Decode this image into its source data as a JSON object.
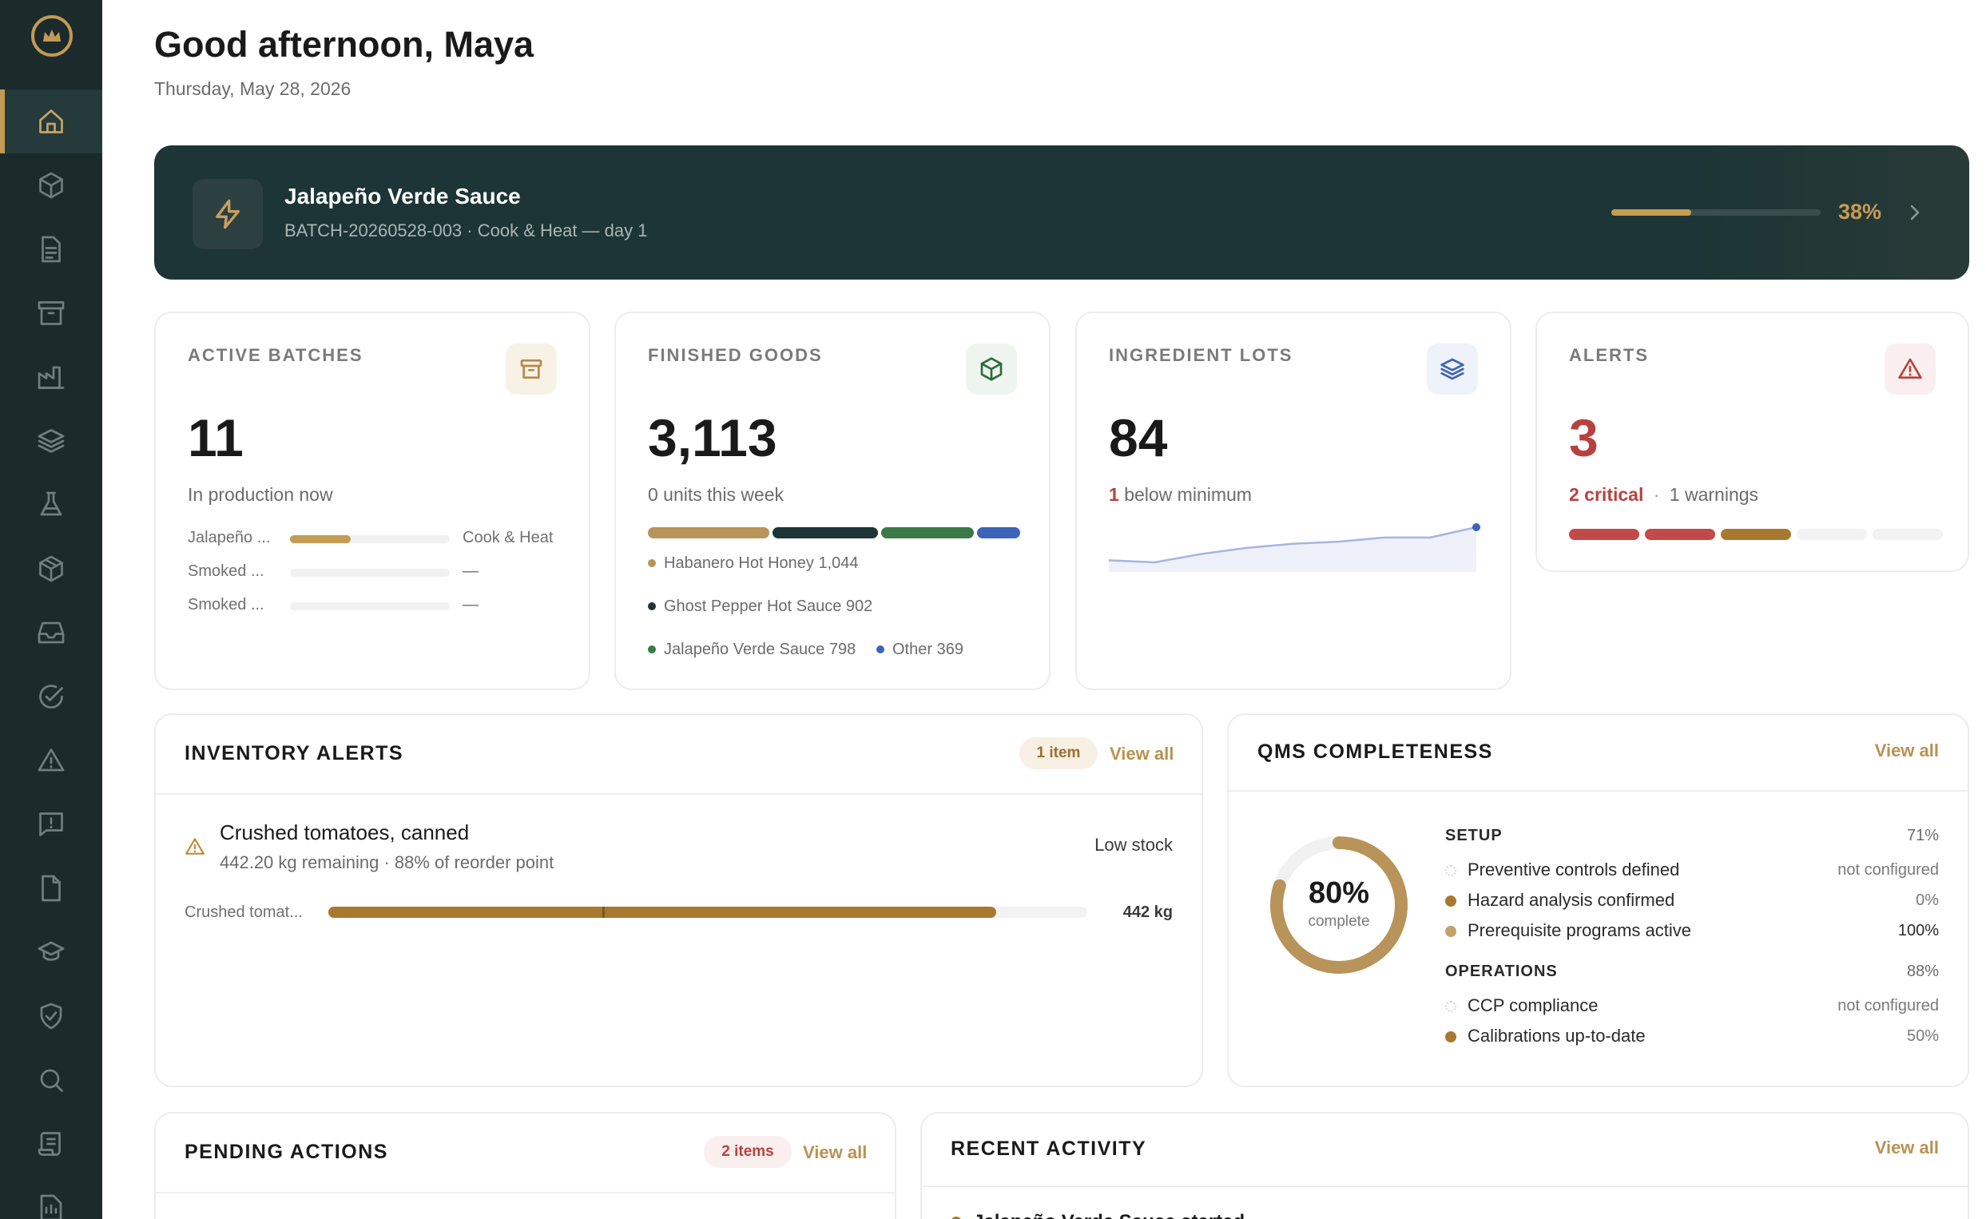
{
  "header": {
    "greeting": "Good afternoon, Maya",
    "date": "Thursday, May 28, 2026"
  },
  "banner": {
    "title": "Jalapeño Verde Sauce",
    "subtitle": "BATCH-20260528-003 · Cook & Heat — day 1",
    "progress": 38,
    "progress_label": "38%"
  },
  "active_batches": {
    "label": "ACTIVE BATCHES",
    "value": "11",
    "sub": "In production now",
    "rows": [
      {
        "name": "Jalapeño ...",
        "progress": 38,
        "stage": "Cook & Heat"
      },
      {
        "name": "Smoked ...",
        "progress": 0,
        "stage": "—"
      },
      {
        "name": "Smoked ...",
        "progress": 0,
        "stage": "—"
      }
    ]
  },
  "finished_goods": {
    "label": "FINISHED GOODS",
    "value": "3,113",
    "sub": "0 units this week",
    "segments": [
      {
        "name": "Habanero Hot Honey",
        "value": 1044,
        "color": "#b8945a"
      },
      {
        "name": "Ghost Pepper Hot Sauce",
        "value": 902,
        "color": "#1d3536"
      },
      {
        "name": "Jalapeño Verde Sauce",
        "value": 798,
        "color": "#3a7a47"
      },
      {
        "name": "Other",
        "value": 369,
        "color": "#3c64b8"
      }
    ],
    "legend": [
      "Habanero Hot Honey 1,044",
      "Ghost Pepper Hot Sauce 902",
      "Jalapeño Verde Sauce 798",
      "Other 369"
    ]
  },
  "ingredient_lots": {
    "label": "INGREDIENT LOTS",
    "value": "84",
    "below_count": "1",
    "below_text": "below minimum",
    "trend": [
      84,
      83,
      87,
      90,
      92,
      93,
      95,
      95,
      100
    ]
  },
  "alerts": {
    "label": "ALERTS",
    "value": "3",
    "critical_text": "2 critical",
    "separator": "·",
    "warnings_text": "1 warnings",
    "segments": [
      "#c24a48",
      "#c24a48",
      "#a9782f",
      "#f3f3f3",
      "#f3f3f3"
    ]
  },
  "inventory_alerts": {
    "title": "INVENTORY ALERTS",
    "pill": "1 item",
    "view_all": "View all",
    "item": {
      "name": "Crushed tomatoes, canned",
      "detail": "442.20 kg remaining · 88% of reorder point",
      "status": "Low stock",
      "bar_label": "Crushed tomat...",
      "bar_fill": 88,
      "bar_value": "442 kg"
    }
  },
  "qms": {
    "title": "QMS COMPLETENESS",
    "view_all": "View all",
    "percent": 80,
    "percent_label": "80%",
    "complete_label": "complete",
    "categories": [
      {
        "name": "SETUP",
        "pct": "71%",
        "items": [
          {
            "label": "Preventive controls defined",
            "value": "not configured",
            "dot": "empty"
          },
          {
            "label": "Hazard analysis confirmed",
            "value": "0%",
            "dot": "dark"
          },
          {
            "label": "Prerequisite programs active",
            "value": "100%",
            "dot": "gold"
          }
        ]
      },
      {
        "name": "OPERATIONS",
        "pct": "88%",
        "items": [
          {
            "label": "CCP compliance",
            "value": "not configured",
            "dot": "empty"
          },
          {
            "label": "Calibrations up-to-date",
            "value": "50%",
            "dot": "dark"
          }
        ]
      }
    ]
  },
  "pending_actions": {
    "title": "PENDING ACTIONS",
    "pill": "2 items",
    "view_all": "View all"
  },
  "recent_activity": {
    "title": "RECENT ACTIVITY",
    "view_all": "View all",
    "first_item": "Jalapeño Verde Sauce started"
  },
  "colors": {
    "sidebar": "#1b2b2c",
    "accent_gold": "#c29a55",
    "banner": "#1d3536",
    "critical_red": "#b8413f"
  },
  "sidebar": {
    "items": [
      "home-icon",
      "box-icon",
      "document-icon",
      "archive-icon",
      "factory-icon",
      "layers-icon",
      "flask-icon",
      "package-icon",
      "inbox-icon",
      "check-circle-icon",
      "warning-icon",
      "message-alert-icon",
      "file-icon",
      "graduation-cap-icon",
      "shield-check-icon",
      "search-icon",
      "scroll-icon",
      "report-icon"
    ]
  }
}
